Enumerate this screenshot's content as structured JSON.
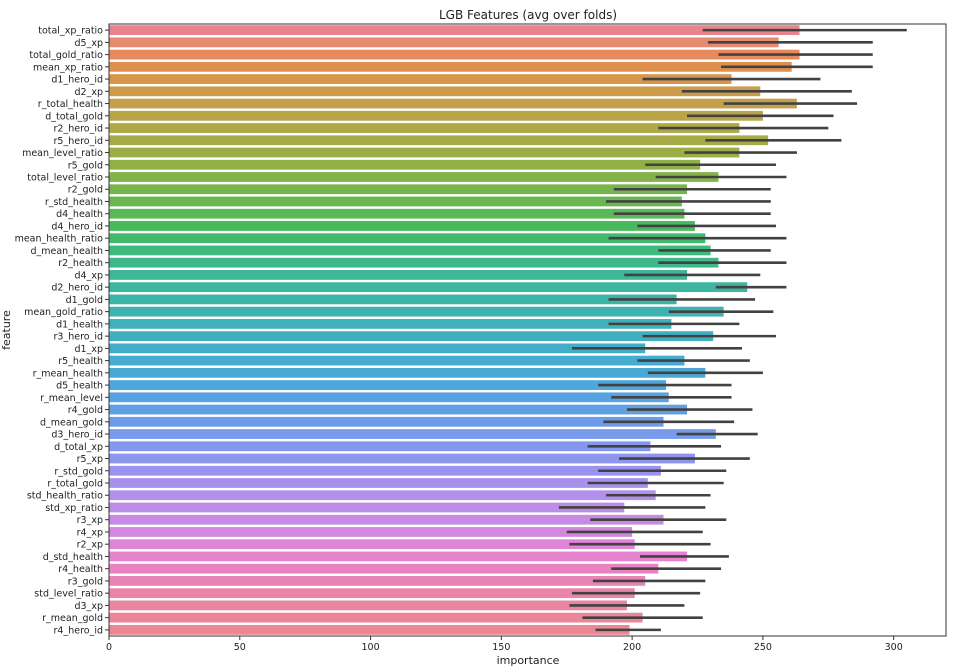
{
  "chart_data": {
    "type": "bar",
    "orientation": "horizontal",
    "title": "LGB Features (avg over folds)",
    "xlabel": "importance",
    "ylabel": "feature",
    "xlim": [
      0,
      320
    ],
    "xticks": [
      0,
      50,
      100,
      150,
      200,
      250,
      300
    ],
    "grid": false,
    "legend": "none",
    "error_bars": true,
    "categories": [
      "total_xp_ratio",
      "d5_xp",
      "total_gold_ratio",
      "mean_xp_ratio",
      "d1_hero_id",
      "d2_xp",
      "r_total_health",
      "d_total_gold",
      "r2_hero_id",
      "r5_hero_id",
      "mean_level_ratio",
      "r5_gold",
      "total_level_ratio",
      "r2_gold",
      "r_std_health",
      "d4_health",
      "d4_hero_id",
      "mean_health_ratio",
      "d_mean_health",
      "r2_health",
      "d4_xp",
      "d2_hero_id",
      "d1_gold",
      "mean_gold_ratio",
      "d1_health",
      "r3_hero_id",
      "d1_xp",
      "r5_health",
      "r_mean_health",
      "d5_health",
      "r_mean_level",
      "r4_gold",
      "d_mean_gold",
      "d3_hero_id",
      "d_total_xp",
      "r5_xp",
      "r_std_gold",
      "r_total_gold",
      "std_health_ratio",
      "std_xp_ratio",
      "r3_xp",
      "r4_xp",
      "r2_xp",
      "d_std_health",
      "r4_health",
      "r3_gold",
      "std_level_ratio",
      "d3_xp",
      "r_mean_gold",
      "r4_hero_id"
    ],
    "values": [
      264,
      256,
      264,
      261,
      238,
      249,
      263,
      250,
      241,
      252,
      241,
      226,
      233,
      221,
      219,
      220,
      224,
      228,
      230,
      233,
      221,
      244,
      217,
      235,
      215,
      231,
      205,
      220,
      228,
      213,
      214,
      221,
      212,
      232,
      207,
      224,
      211,
      206,
      209,
      197,
      212,
      200,
      201,
      221,
      210,
      205,
      201,
      198,
      204,
      199
    ],
    "error_low": [
      227,
      229,
      233,
      234,
      204,
      219,
      235,
      221,
      210,
      228,
      220,
      205,
      209,
      193,
      190,
      193,
      202,
      191,
      210,
      210,
      197,
      232,
      191,
      214,
      191,
      204,
      177,
      202,
      206,
      187,
      192,
      198,
      189,
      217,
      183,
      195,
      187,
      183,
      190,
      172,
      184,
      175,
      176,
      203,
      192,
      185,
      177,
      176,
      181,
      186
    ],
    "error_high": [
      305,
      292,
      292,
      292,
      272,
      284,
      286,
      277,
      275,
      280,
      263,
      255,
      259,
      253,
      253,
      253,
      255,
      259,
      253,
      259,
      249,
      259,
      247,
      254,
      241,
      255,
      242,
      245,
      250,
      238,
      238,
      246,
      239,
      248,
      234,
      245,
      236,
      235,
      230,
      228,
      236,
      227,
      230,
      237,
      234,
      228,
      226,
      220,
      227,
      211
    ],
    "colors": [
      "#e9848f",
      "#e78a72",
      "#e68a5e",
      "#e0904d",
      "#d7964c",
      "#cc9c4a",
      "#c3a049",
      "#b9a548",
      "#afa847",
      "#a6ab47",
      "#9cad47",
      "#90b048",
      "#84b24a",
      "#77b44d",
      "#68b751",
      "#58b955",
      "#48ba5c",
      "#42ba6c",
      "#3fb97d",
      "#3eb88a",
      "#3db795",
      "#3db59f",
      "#3db4a8",
      "#3eb2b0",
      "#3fb1b8",
      "#40afc0",
      "#42adc8",
      "#45abcf",
      "#49a9d5",
      "#4fa6dc",
      "#57a3e1",
      "#619fe5",
      "#6c9be9",
      "#789aeb",
      "#8397ec",
      "#8e95ed",
      "#9a93ed",
      "#a692ec",
      "#b18fea",
      "#bd8ce7",
      "#c98ae3",
      "#d487de",
      "#de85d8",
      "#e583ce",
      "#e882c1",
      "#e983b5",
      "#ea84aa",
      "#ea85a0",
      "#ea8698",
      "#ea8891"
    ]
  }
}
